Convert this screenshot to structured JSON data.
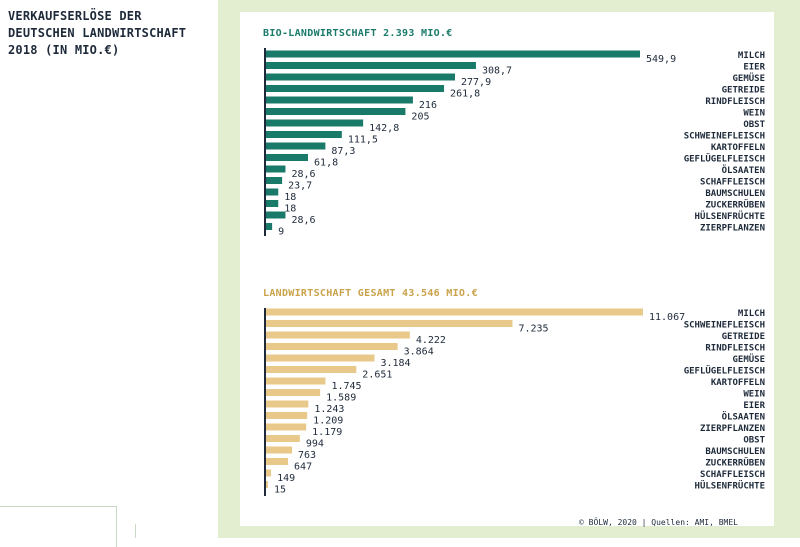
{
  "page_title": "VERKAUFSERLÖSE DER\nDEUTSCHEN LANDWIRTSCHAFT\n2018 (IN MIO.€)",
  "footer": "© BÖLW, 2020 | Quellen: AMI, BMEL",
  "colors": {
    "bio": "#1a7a6a",
    "gesamt": "#e8c98a",
    "panel": "#e3edcf",
    "axis": "#1e2a3a"
  },
  "chart_data": [
    {
      "type": "bar",
      "orientation": "horizontal",
      "title": "BIO-LANDWIRTSCHAFT 2.393 MIO.€",
      "categories": [
        "MILCH",
        "EIER",
        "GEMÜSE",
        "GETREIDE",
        "RINDFLEISCH",
        "WEIN",
        "OBST",
        "SCHWEINEFLEISCH",
        "KARTOFFELN",
        "GEFLÜGELFLEISCH",
        "ÖLSAATEN",
        "SCHAFFLEISCH",
        "BAUMSCHULEN",
        "ZUCKERRÜBEN",
        "HÜLSENFRÜCHTE",
        "ZIERPFLANZEN"
      ],
      "values": [
        549.9,
        308.7,
        277.9,
        261.8,
        216,
        205,
        142.8,
        111.5,
        87.3,
        61.8,
        28.6,
        23.7,
        18,
        18,
        28.6,
        9
      ],
      "value_labels": [
        "549,9",
        "308,7",
        "277,9",
        "261,8",
        "216",
        "205",
        "142,8",
        "111,5",
        "87,3",
        "61,8",
        "28,6",
        "23,7",
        "18",
        "18",
        "28,6",
        "9"
      ],
      "color": "#1a7a6a",
      "title_color": "#1a7a6a"
    },
    {
      "type": "bar",
      "orientation": "horizontal",
      "title": "LANDWIRTSCHAFT GESAMT 43.546 MIO.€",
      "categories": [
        "MILCH",
        "SCHWEINEFLEISCH",
        "GETREIDE",
        "RINDFLEISCH",
        "GEMÜSE",
        "GEFLÜGELFLEISCH",
        "KARTOFFELN",
        "WEIN",
        "EIER",
        "ÖLSAATEN",
        "ZIERPFLANZEN",
        "OBST",
        "BAUMSCHULEN",
        "ZUCKERRÜBEN",
        "SCHAFFLEISCH",
        "HÜLSENFRÜCHTE"
      ],
      "values": [
        11067,
        7235,
        4222,
        3864,
        3184,
        2651,
        1745,
        1589,
        1243,
        1209,
        1179,
        994,
        763,
        647,
        149,
        15
      ],
      "value_labels": [
        "11.067",
        "7.235",
        "4.222",
        "3.864",
        "3.184",
        "2.651",
        "1.745",
        "1.589",
        "1.243",
        "1.209",
        "1.179",
        "994",
        "763",
        "647",
        "149",
        "15"
      ],
      "color": "#e8c98a",
      "title_color": "#c9a24a"
    }
  ]
}
